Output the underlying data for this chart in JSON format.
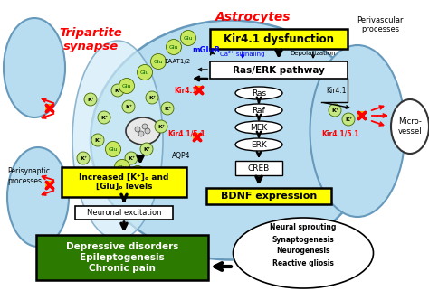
{
  "bg_color": "#ffffff",
  "light_blue": "#b8ddf0",
  "light_blue2": "#d0ecf8",
  "yellow_color": "#ffff00",
  "green_color": "#2d7a00",
  "tripartite_label": "Tripartite\nsynapse",
  "astrocytes_label": "Astrocytes",
  "perivascular_label": "Perivascular\nprocesses",
  "perisynaptic_label": "Perisynaptic\nprocesses",
  "microvessels_label": "Micro-\nvessel",
  "kir41_dysfunction": "Kir4.1 dysfunction",
  "ras_erk": "Ras/ERK pathway",
  "bdnf_expression": "BDNF expression",
  "increased_box": "Increased [K⁺]ₒ and\n[Glu]ₒ levels",
  "neuronal_excitation": "Neuronal excitation",
  "depressive_box": "Depressive disorders\nEpileptogenesis\nChronic pain",
  "pathway_items": [
    "Ras",
    "Raf",
    "MEK",
    "ERK"
  ],
  "bdnf_items": [
    "Neural sprouting",
    "Synaptogenesis",
    "Neurogenesis",
    "Reactive gliosis"
  ],
  "ca2_label": "Ca²⁺ signaling",
  "depolarization_label": "Depolarization",
  "kir41_label": "Kir4.1",
  "kir415_label": "Kir4.1/5.1",
  "eaat_label": "EAAT1/2",
  "mglu_label": "mGluR",
  "aqp4_label": "AQP4"
}
